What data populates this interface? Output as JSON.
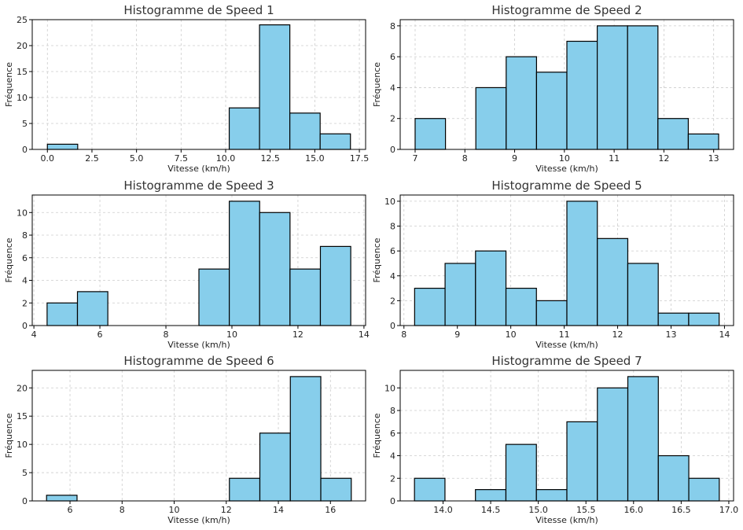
{
  "chart_data": [
    {
      "type": "bar",
      "title": "Histogramme de Speed 1",
      "xlabel": "Vitesse (km/h)",
      "ylabel": "Fréquence",
      "bar_color": "#87ceeb",
      "edge_color": "#000000",
      "grid": true,
      "bin_edges": [
        0.0,
        1.7,
        3.4,
        5.1,
        6.8,
        8.5,
        10.2,
        11.9,
        13.6,
        15.3,
        17.0
      ],
      "values": [
        1,
        0,
        0,
        0,
        0,
        0,
        8,
        24,
        7,
        3
      ],
      "xlim": [
        -0.85,
        17.85
      ],
      "ylim": [
        0,
        25
      ],
      "xticks": [
        0.0,
        2.5,
        5.0,
        7.5,
        10.0,
        12.5,
        15.0,
        17.5
      ],
      "xtick_labels": [
        "0.0",
        "2.5",
        "5.0",
        "7.5",
        "10.0",
        "12.5",
        "15.0",
        "17.5"
      ],
      "yticks": [
        0,
        5,
        10,
        15,
        20,
        25
      ],
      "ytick_labels": [
        "0",
        "5",
        "10",
        "15",
        "20",
        "25"
      ]
    },
    {
      "type": "bar",
      "title": "Histogramme de Speed 2",
      "xlabel": "Vitesse (km/h)",
      "ylabel": "Fréquence",
      "bar_color": "#87ceeb",
      "edge_color": "#000000",
      "grid": true,
      "bin_edges": [
        7.0,
        7.61,
        8.22,
        8.83,
        9.44,
        10.05,
        10.66,
        11.27,
        11.88,
        12.49,
        13.1
      ],
      "values": [
        2,
        0,
        4,
        6,
        5,
        7,
        8,
        8,
        2,
        1
      ],
      "xlim": [
        6.7,
        13.4
      ],
      "ylim": [
        0,
        8.4
      ],
      "xticks": [
        7,
        8,
        9,
        10,
        11,
        12,
        13
      ],
      "xtick_labels": [
        "7",
        "8",
        "9",
        "10",
        "11",
        "12",
        "13"
      ],
      "yticks": [
        0,
        2,
        4,
        6,
        8
      ],
      "ytick_labels": [
        "0",
        "2",
        "4",
        "6",
        "8"
      ]
    },
    {
      "type": "bar",
      "title": "Histogramme de Speed 3",
      "xlabel": "Vitesse (km/h)",
      "ylabel": "Fréquence",
      "bar_color": "#87ceeb",
      "edge_color": "#000000",
      "grid": true,
      "bin_edges": [
        4.4,
        5.32,
        6.24,
        7.16,
        8.08,
        9.0,
        9.92,
        10.84,
        11.76,
        12.68,
        13.6
      ],
      "values": [
        2,
        3,
        0,
        0,
        0,
        5,
        11,
        10,
        5,
        7
      ],
      "xlim": [
        3.95,
        14.05
      ],
      "ylim": [
        0,
        11.55
      ],
      "xticks": [
        4,
        6,
        8,
        10,
        12,
        14
      ],
      "xtick_labels": [
        "4",
        "6",
        "8",
        "10",
        "12",
        "14"
      ],
      "yticks": [
        0,
        2,
        4,
        6,
        8,
        10
      ],
      "ytick_labels": [
        "0",
        "2",
        "4",
        "6",
        "8",
        "10"
      ]
    },
    {
      "type": "bar",
      "title": "Histogramme de Speed 5",
      "xlabel": "Vitesse (km/h)",
      "ylabel": "Fréquence",
      "bar_color": "#87ceeb",
      "edge_color": "#000000",
      "grid": true,
      "bin_edges": [
        8.2,
        8.77,
        9.34,
        9.91,
        10.48,
        11.05,
        11.62,
        12.19,
        12.76,
        13.33,
        13.9
      ],
      "values": [
        3,
        5,
        6,
        3,
        2,
        10,
        7,
        5,
        1,
        1
      ],
      "xlim": [
        7.93,
        14.17
      ],
      "ylim": [
        0,
        10.5
      ],
      "xticks": [
        8,
        9,
        10,
        11,
        12,
        13,
        14
      ],
      "xtick_labels": [
        "8",
        "9",
        "10",
        "11",
        "12",
        "13",
        "14"
      ],
      "yticks": [
        0,
        2,
        4,
        6,
        8,
        10
      ],
      "ytick_labels": [
        "0",
        "2",
        "4",
        "6",
        "8",
        "10"
      ]
    },
    {
      "type": "bar",
      "title": "Histogramme de Speed 6",
      "xlabel": "Vitesse (km/h)",
      "ylabel": "Fréquence",
      "bar_color": "#87ceeb",
      "edge_color": "#000000",
      "grid": true,
      "bin_edges": [
        5.1,
        6.27,
        7.44,
        8.61,
        9.78,
        10.95,
        12.12,
        13.29,
        14.46,
        15.63,
        16.8
      ],
      "values": [
        1,
        0,
        0,
        0,
        0,
        0,
        4,
        12,
        22,
        4
      ],
      "xlim": [
        4.55,
        17.35
      ],
      "ylim": [
        0,
        23.1
      ],
      "xticks": [
        6,
        8,
        10,
        12,
        14,
        16
      ],
      "xtick_labels": [
        "6",
        "8",
        "10",
        "12",
        "14",
        "16"
      ],
      "yticks": [
        0,
        5,
        10,
        15,
        20
      ],
      "ytick_labels": [
        "0",
        "5",
        "10",
        "15",
        "20"
      ]
    },
    {
      "type": "bar",
      "title": "Histogramme de Speed 7",
      "xlabel": "Vitesse (km/h)",
      "ylabel": "Fréquence",
      "bar_color": "#87ceeb",
      "edge_color": "#000000",
      "grid": true,
      "bin_edges": [
        13.7,
        14.02,
        14.34,
        14.66,
        14.98,
        15.3,
        15.62,
        15.94,
        16.26,
        16.58,
        16.9
      ],
      "values": [
        2,
        0,
        1,
        5,
        1,
        7,
        10,
        11,
        4,
        2
      ],
      "xlim": [
        13.55,
        17.05
      ],
      "ylim": [
        0,
        11.55
      ],
      "xticks": [
        14.0,
        14.5,
        15.0,
        15.5,
        16.0,
        16.5,
        17.0
      ],
      "xtick_labels": [
        "14.0",
        "14.5",
        "15.0",
        "15.5",
        "16.0",
        "16.5",
        "17.0"
      ],
      "yticks": [
        0,
        2,
        4,
        6,
        8,
        10
      ],
      "ytick_labels": [
        "0",
        "2",
        "4",
        "6",
        "8",
        "10"
      ]
    }
  ]
}
